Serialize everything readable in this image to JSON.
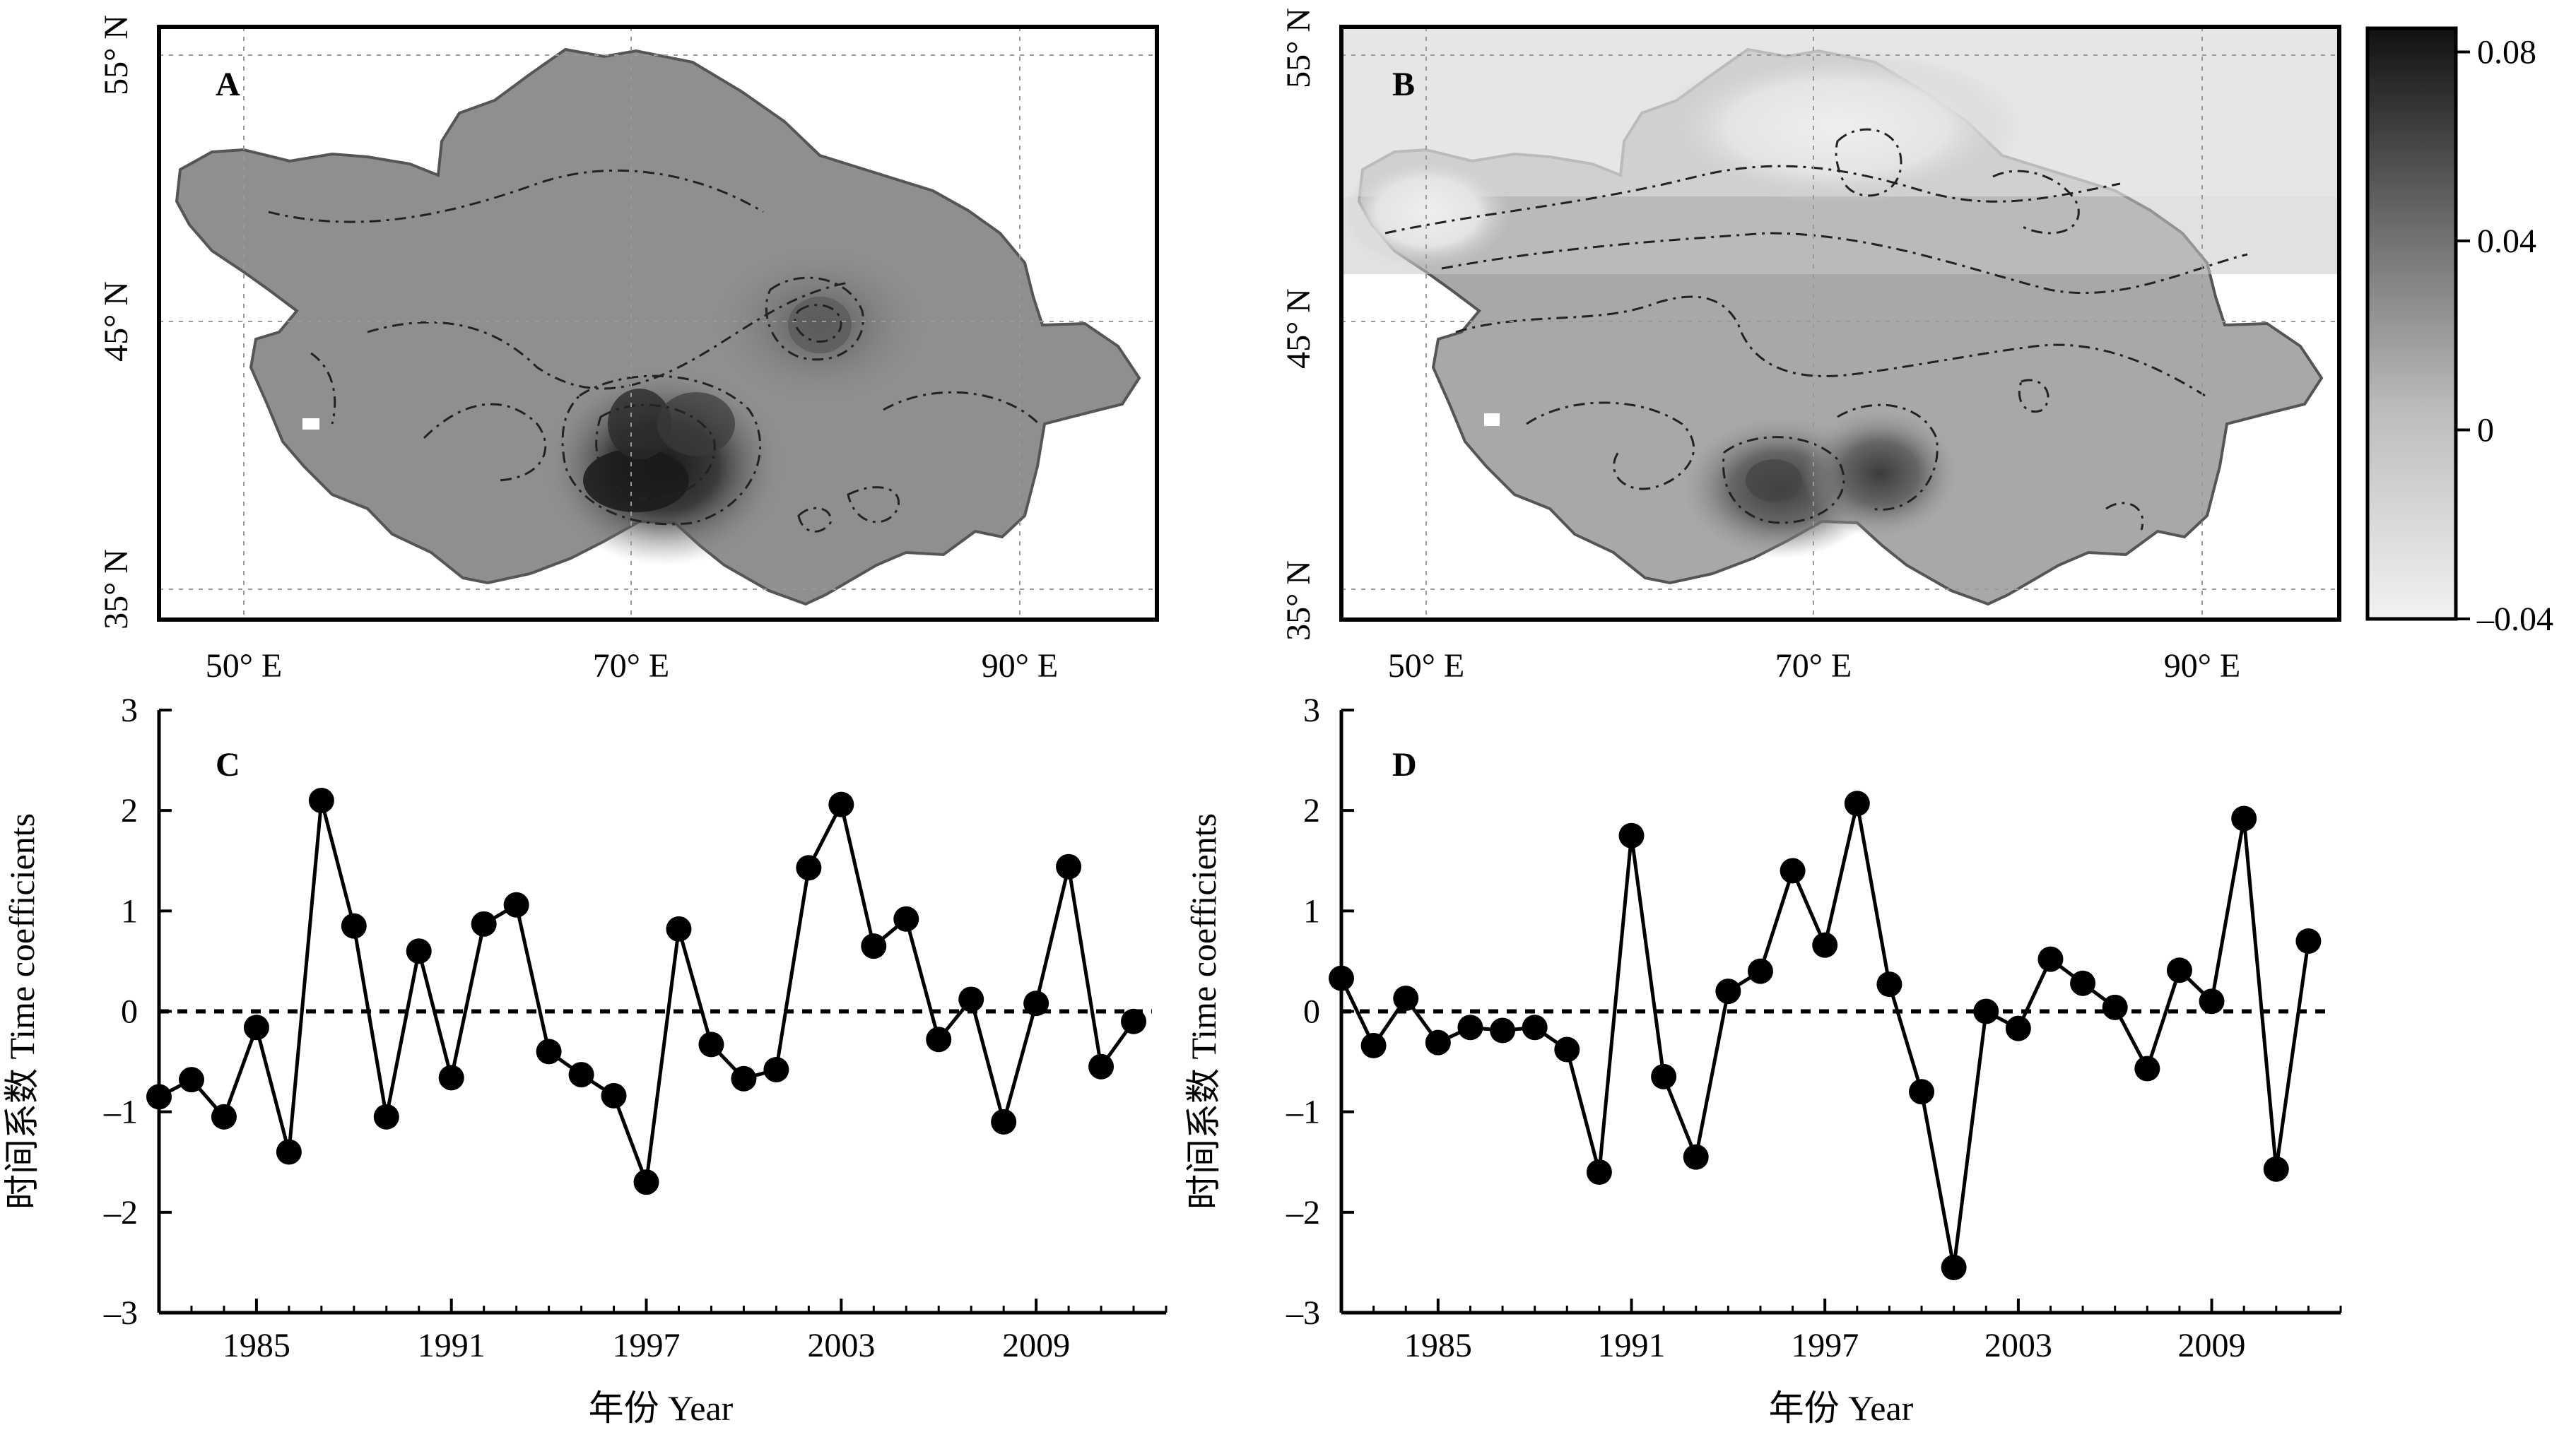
{
  "maps": [
    {
      "letter": "A",
      "lat_ticks": [
        "55° N",
        "45° N",
        "35° N"
      ],
      "lon_ticks": [
        "50° E",
        "70° E",
        "90° E"
      ]
    },
    {
      "letter": "B",
      "lat_ticks": [
        "55° N",
        "45° N",
        "35° N"
      ],
      "lon_ticks": [
        "50° E",
        "70° E",
        "90° E"
      ]
    }
  ],
  "colorbar": {
    "ticks": [
      "0.08",
      "0.04",
      "0",
      "–0.04"
    ],
    "values": [
      0.08,
      0.04,
      0,
      -0.04
    ],
    "range": [
      -0.04,
      0.085
    ],
    "colors": {
      "low": "#f2f2f2",
      "high": "#111111"
    }
  },
  "chart_data": [
    {
      "type": "line",
      "panel": "C",
      "xlabel": "年份 Year",
      "ylabel": "时间系数 Time coefficients",
      "x_ticks": [
        "1985",
        "1991",
        "1997",
        "2003",
        "2009"
      ],
      "x_tick_values": [
        1985,
        1991,
        1997,
        2003,
        2009
      ],
      "y_ticks": [
        "3",
        "2",
        "1",
        "0",
        "–1",
        "–2",
        "–3"
      ],
      "y_tick_values": [
        3,
        2,
        1,
        0,
        -1,
        -2,
        -3
      ],
      "xlim": [
        1982,
        2013
      ],
      "ylim": [
        -3,
        3
      ],
      "reference_line": 0,
      "x": [
        1982,
        1983,
        1984,
        1985,
        1986,
        1987,
        1988,
        1989,
        1990,
        1991,
        1992,
        1993,
        1994,
        1995,
        1996,
        1997,
        1998,
        1999,
        2000,
        2001,
        2002,
        2003,
        2004,
        2005,
        2006,
        2007,
        2008,
        2009,
        2010,
        2011,
        2012
      ],
      "values": [
        -0.85,
        -0.68,
        -1.05,
        -0.16,
        -1.4,
        2.1,
        0.85,
        -1.05,
        0.6,
        -0.66,
        0.87,
        1.06,
        -0.4,
        -0.63,
        -0.84,
        -1.7,
        0.82,
        -0.33,
        -0.67,
        -0.58,
        1.43,
        2.06,
        0.65,
        0.92,
        -0.28,
        0.12,
        -1.1,
        0.08,
        1.44,
        -0.55,
        -0.1
      ]
    },
    {
      "type": "line",
      "panel": "D",
      "xlabel": "年份 Year",
      "ylabel": "时间系数 Time coefficients",
      "x_ticks": [
        "1985",
        "1991",
        "1997",
        "2003",
        "2009"
      ],
      "x_tick_values": [
        1985,
        1991,
        1997,
        2003,
        2009
      ],
      "y_ticks": [
        "3",
        "2",
        "1",
        "0",
        "–1",
        "–2",
        "–3"
      ],
      "y_tick_values": [
        3,
        2,
        1,
        0,
        -1,
        -2,
        -3
      ],
      "xlim": [
        1982,
        2013
      ],
      "ylim": [
        -3,
        3
      ],
      "reference_line": 0,
      "x": [
        1982,
        1983,
        1984,
        1985,
        1986,
        1987,
        1988,
        1989,
        1990,
        1991,
        1992,
        1993,
        1994,
        1995,
        1996,
        1997,
        1998,
        1999,
        2000,
        2001,
        2002,
        2003,
        2004,
        2005,
        2006,
        2007,
        2008,
        2009,
        2010,
        2011,
        2012
      ],
      "values": [
        0.33,
        -0.34,
        0.13,
        -0.31,
        -0.16,
        -0.19,
        -0.16,
        -0.38,
        -1.6,
        1.75,
        -0.65,
        -1.45,
        0.2,
        0.4,
        1.4,
        0.66,
        2.07,
        0.27,
        -0.8,
        -2.55,
        0.0,
        -0.17,
        0.52,
        0.28,
        0.04,
        -0.57,
        0.41,
        0.1,
        1.92,
        -1.57,
        0.7
      ]
    }
  ]
}
